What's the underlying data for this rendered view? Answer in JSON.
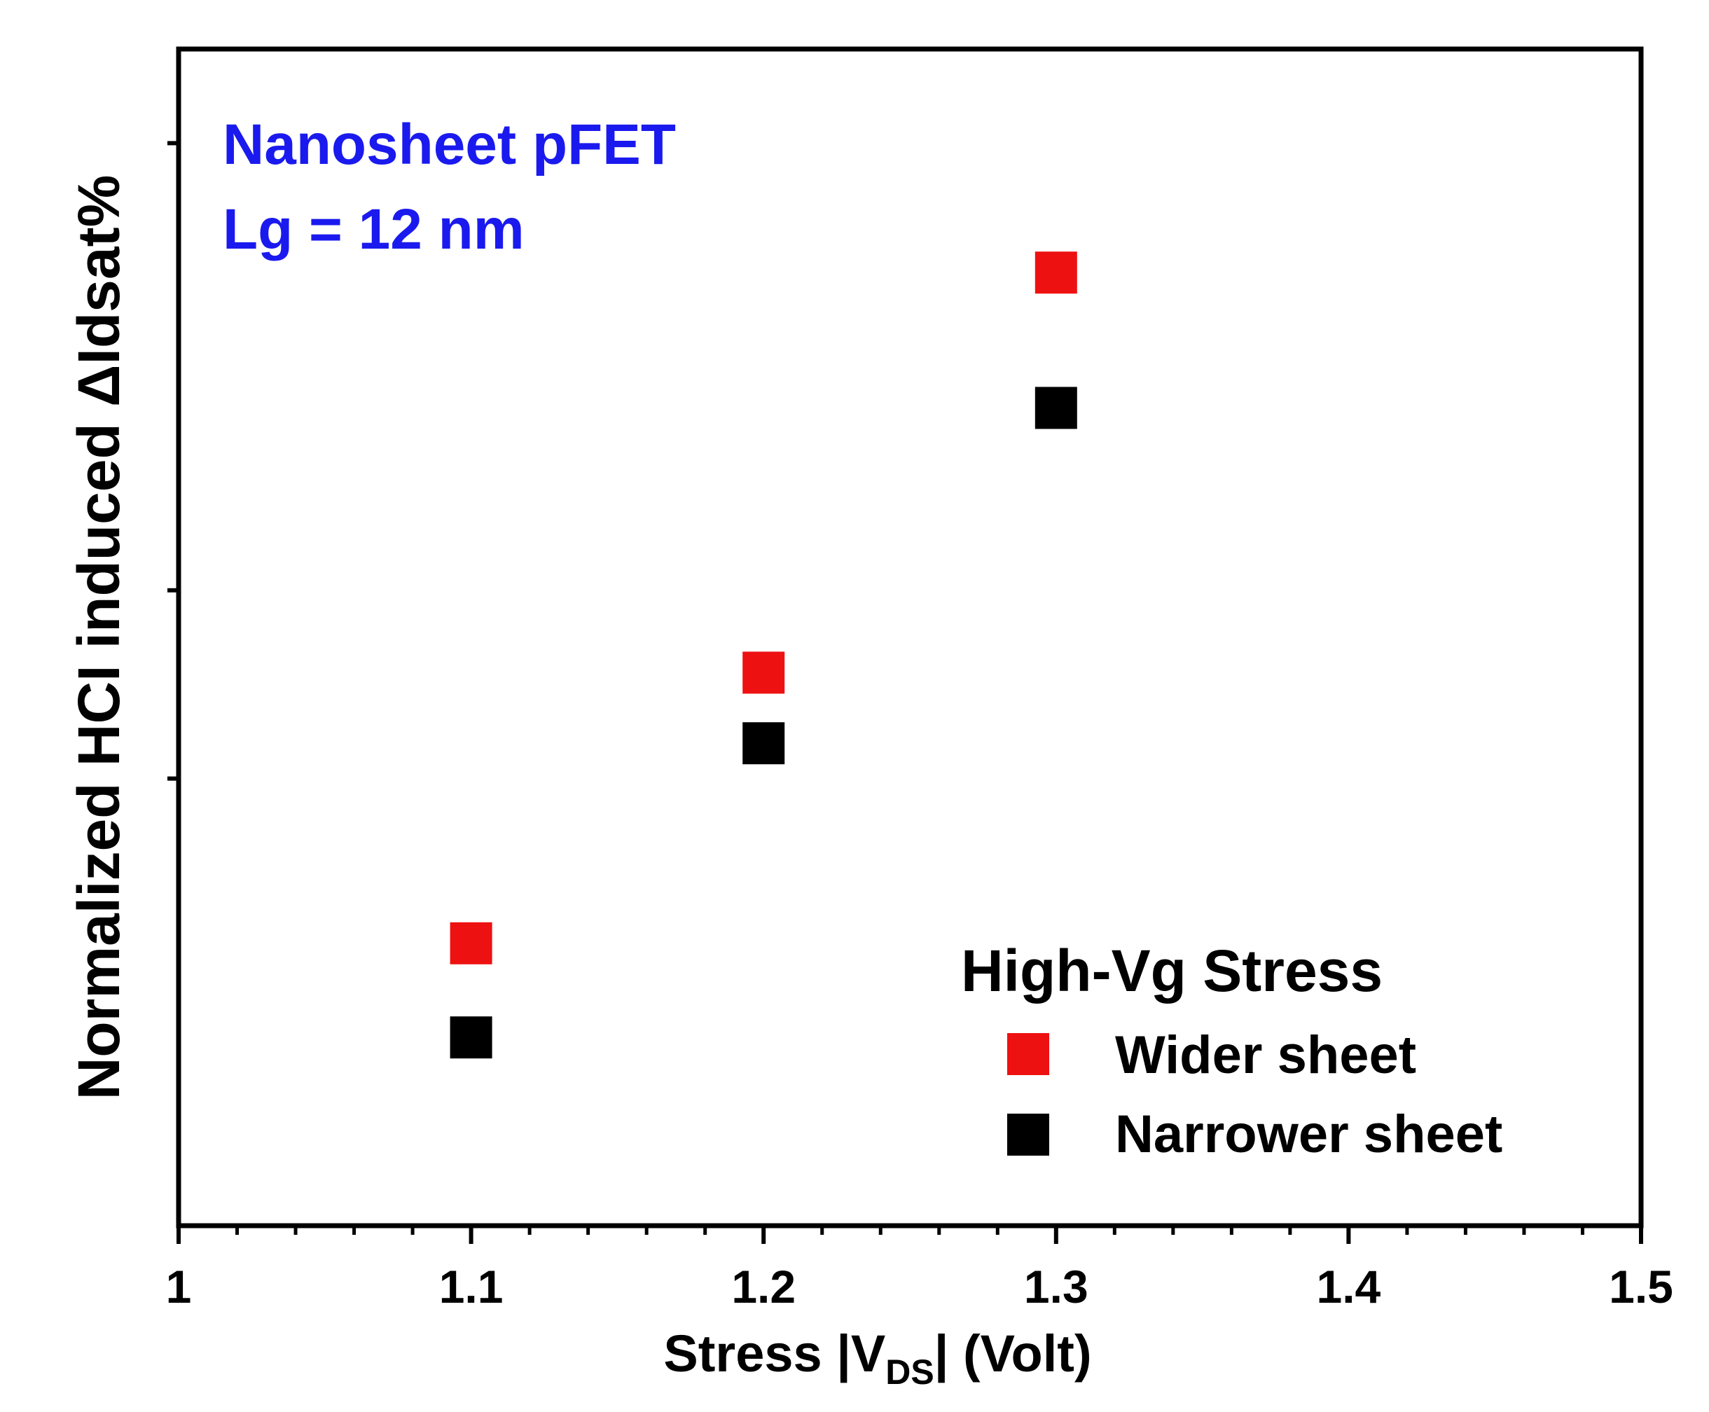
{
  "chart_data": {
    "type": "scatter",
    "title": "",
    "xlabel": {
      "prefix": "Stress |V",
      "sub": "DS",
      "suffix": "| (Volt)"
    },
    "ylabel": "Normalized HCI induced ΔIdsat%",
    "xlim": [
      1.0,
      1.5
    ],
    "ylim": [
      0,
      1
    ],
    "x_ticks": [
      {
        "value": 1.0,
        "label": "1"
      },
      {
        "value": 1.1,
        "label": "1.1"
      },
      {
        "value": 1.2,
        "label": "1.2"
      },
      {
        "value": 1.3,
        "label": "1.3"
      },
      {
        "value": 1.4,
        "label": "1.4"
      },
      {
        "value": 1.5,
        "label": "1.5"
      }
    ],
    "y_ticks": [
      0.92,
      0.54,
      0.38
    ],
    "y_tick_labels_shown": false,
    "annotations": [
      "Nanosheet pFET",
      "Lg = 12 nm"
    ],
    "legend": {
      "title": "High-Vg Stress",
      "position": "bottom-right"
    },
    "series": [
      {
        "name": "Wider sheet",
        "color": "#ee1111",
        "points": [
          {
            "x": 1.1,
            "y": 0.24
          },
          {
            "x": 1.2,
            "y": 0.47
          },
          {
            "x": 1.3,
            "y": 0.81
          }
        ]
      },
      {
        "name": "Narrower sheet",
        "color": "#000000",
        "points": [
          {
            "x": 1.1,
            "y": 0.16
          },
          {
            "x": 1.2,
            "y": 0.41
          },
          {
            "x": 1.3,
            "y": 0.695
          }
        ]
      }
    ]
  },
  "colors": {
    "annotation": "#1a1aee",
    "axis": "#000000"
  }
}
